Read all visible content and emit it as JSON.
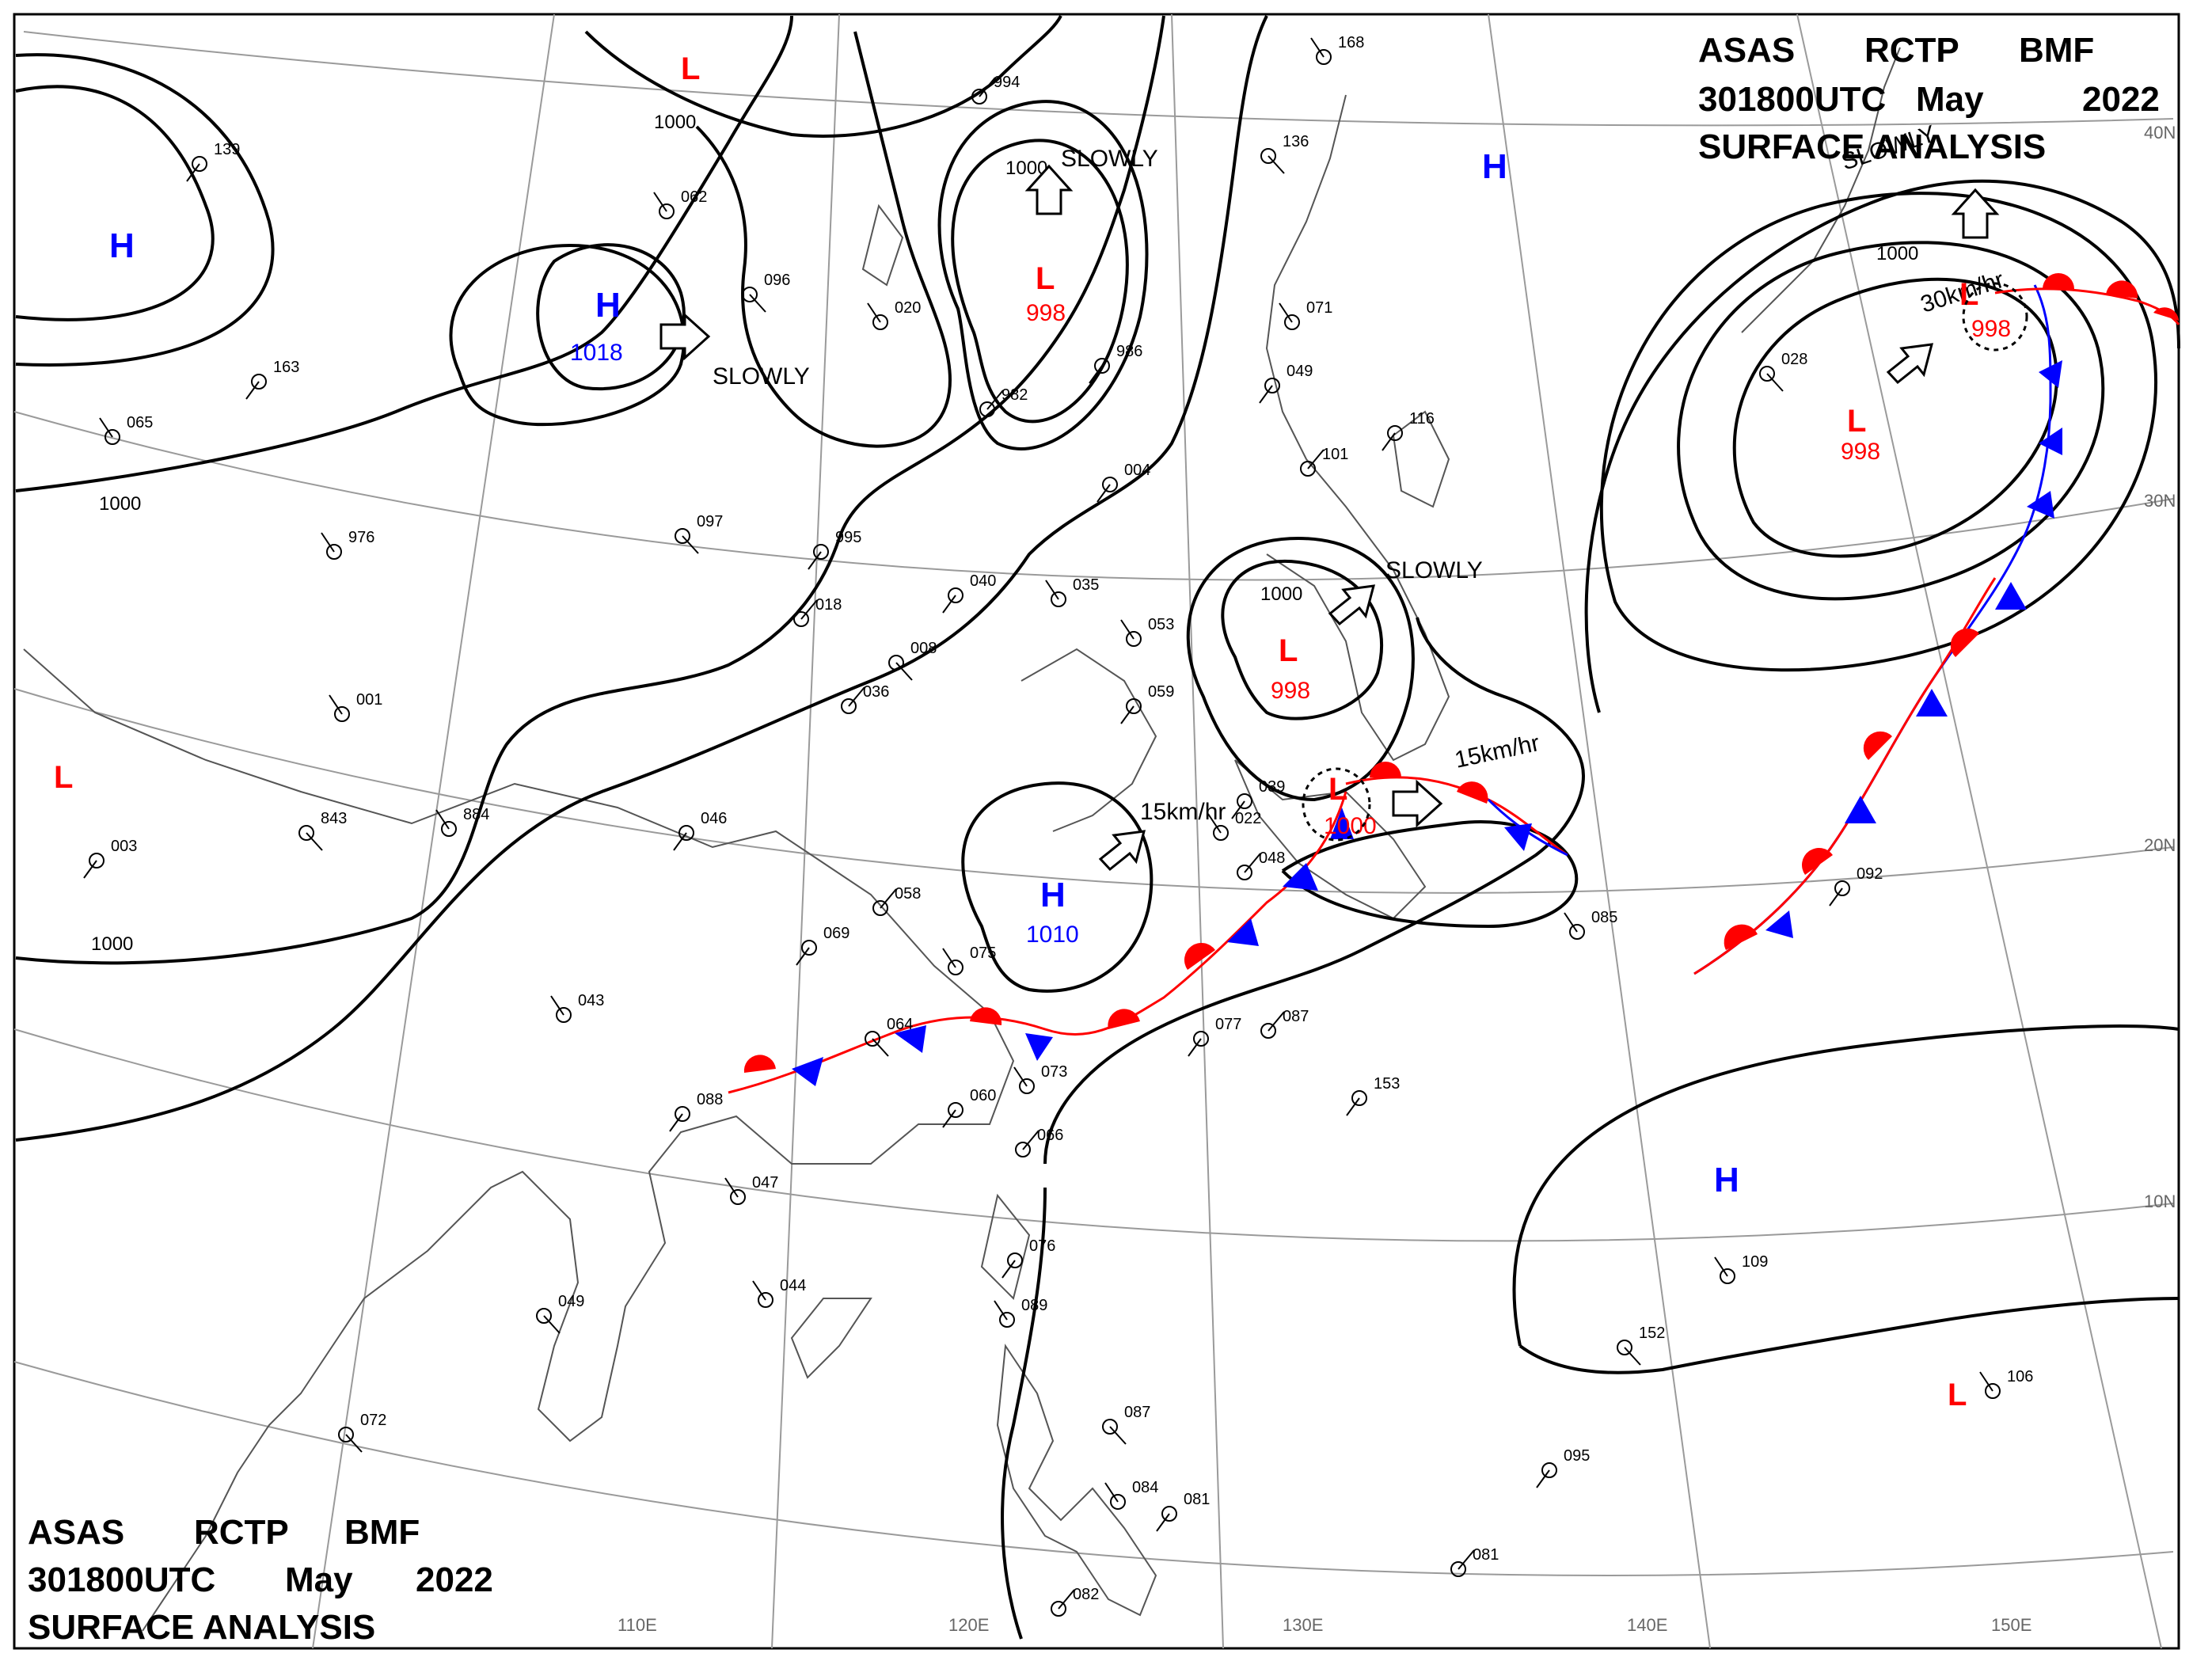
{
  "header_top": {
    "line1": [
      "ASAS",
      "RCTP",
      "BMF"
    ],
    "line2": [
      "301800UTC",
      "May",
      "2022"
    ],
    "line3": "SURFACE ANALYSIS"
  },
  "header_bottom": {
    "line1": [
      "ASAS",
      "RCTP",
      "BMF"
    ],
    "line2": [
      "301800UTC",
      "May",
      "2022"
    ],
    "line3": "SURFACE ANALYSIS"
  },
  "colors": {
    "high": "#0000ff",
    "low": "#ff0000",
    "warm_front": "#ff0000",
    "cold_front": "#0000ff",
    "isobar": "#000000",
    "grid": "#808080"
  },
  "longitude_labels": [
    "110E",
    "120E",
    "130E",
    "140E",
    "150E"
  ],
  "latitude_labels": [
    "40N",
    "30N",
    "20N",
    "10N"
  ],
  "pressure_centers": [
    {
      "type": "L",
      "value": ""
    },
    {
      "type": "H",
      "value": ""
    },
    {
      "type": "H",
      "value": "1018"
    },
    {
      "type": "L",
      "value": "998"
    },
    {
      "type": "H",
      "value": ""
    },
    {
      "type": "L",
      "value": "998"
    },
    {
      "type": "L",
      "value": "998"
    },
    {
      "type": "L",
      "value": "1000"
    },
    {
      "type": "H",
      "value": "1010"
    },
    {
      "type": "L",
      "value": ""
    },
    {
      "type": "H",
      "value": ""
    },
    {
      "type": "L",
      "value": "998"
    },
    {
      "type": "L",
      "value": ""
    }
  ],
  "isobar_labels": [
    "1000",
    "1000",
    "1000",
    "1000",
    "1000",
    "1000"
  ],
  "motion_labels": [
    "SLOWLY",
    "SLOWLY",
    "SLOWLY",
    "SLOWLY",
    "15km/hr",
    "15km/hr",
    "30km/hr"
  ],
  "station_values": [
    "994",
    "139",
    "062",
    "096",
    "020",
    "986",
    "982",
    "163",
    "065",
    "097",
    "976",
    "995",
    "018",
    "040",
    "035",
    "008",
    "053",
    "059",
    "036",
    "004",
    "001",
    "843",
    "884",
    "046",
    "058",
    "069",
    "075",
    "064",
    "073",
    "077",
    "087",
    "088",
    "047",
    "049",
    "044",
    "060",
    "066",
    "076",
    "089",
    "087",
    "084",
    "081",
    "082",
    "153",
    "109",
    "152",
    "106",
    "095",
    "081",
    "092",
    "085",
    "136",
    "071",
    "049",
    "101",
    "116",
    "168",
    "028",
    "022",
    "039",
    "048",
    "003",
    "043",
    "072"
  ]
}
